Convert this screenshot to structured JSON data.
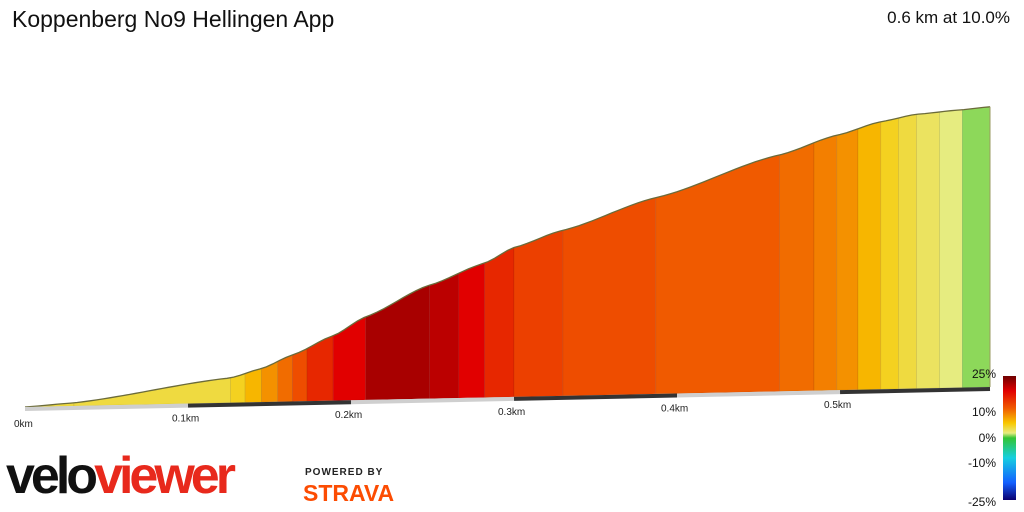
{
  "header": {
    "title": "Koppenberg No9 Hellingen App",
    "summary": "0.6 km at 10.0%"
  },
  "branding": {
    "velo": "velo",
    "viewer": "viewer",
    "powered_by": "POWERED BY",
    "strava": "STRAVA"
  },
  "chart_data": {
    "type": "area",
    "x_unit": "km",
    "x_ticks": [
      {
        "value": 0,
        "label": "0km"
      },
      {
        "value": 0.1,
        "label": "0.1km"
      },
      {
        "value": 0.2,
        "label": "0.2km"
      },
      {
        "value": 0.3,
        "label": "0.3km"
      },
      {
        "value": 0.4,
        "label": "0.4km"
      },
      {
        "value": 0.5,
        "label": "0.5km"
      }
    ],
    "xlim": [
      0,
      0.6
    ],
    "segments": [
      {
        "x0": 0.0,
        "x1": 0.03,
        "gradient": 4
      },
      {
        "x0": 0.03,
        "x1": 0.126,
        "gradient": 4
      },
      {
        "x0": 0.126,
        "x1": 0.135,
        "gradient": 5
      },
      {
        "x0": 0.135,
        "x1": 0.145,
        "gradient": 7
      },
      {
        "x0": 0.145,
        "x1": 0.155,
        "gradient": 9
      },
      {
        "x0": 0.155,
        "x1": 0.164,
        "gradient": 11
      },
      {
        "x0": 0.164,
        "x1": 0.173,
        "gradient": 13
      },
      {
        "x0": 0.173,
        "x1": 0.189,
        "gradient": 16
      },
      {
        "x0": 0.189,
        "x1": 0.209,
        "gradient": 19
      },
      {
        "x0": 0.209,
        "x1": 0.248,
        "gradient": 22
      },
      {
        "x0": 0.248,
        "x1": 0.266,
        "gradient": 21
      },
      {
        "x0": 0.266,
        "x1": 0.282,
        "gradient": 19
      },
      {
        "x0": 0.282,
        "x1": 0.3,
        "gradient": 16
      },
      {
        "x0": 0.3,
        "x1": 0.33,
        "gradient": 14
      },
      {
        "x0": 0.33,
        "x1": 0.387,
        "gradient": 13
      },
      {
        "x0": 0.387,
        "x1": 0.463,
        "gradient": 12
      },
      {
        "x0": 0.463,
        "x1": 0.484,
        "gradient": 11
      },
      {
        "x0": 0.484,
        "x1": 0.498,
        "gradient": 10
      },
      {
        "x0": 0.498,
        "x1": 0.511,
        "gradient": 9
      },
      {
        "x0": 0.511,
        "x1": 0.525,
        "gradient": 7
      },
      {
        "x0": 0.525,
        "x1": 0.536,
        "gradient": 5
      },
      {
        "x0": 0.536,
        "x1": 0.547,
        "gradient": 4
      },
      {
        "x0": 0.547,
        "x1": 0.561,
        "gradient": 3
      },
      {
        "x0": 0.561,
        "x1": 0.575,
        "gradient": 2
      },
      {
        "x0": 0.575,
        "x1": 0.592,
        "gradient": 1
      }
    ],
    "elevation_profile_rel": [
      [
        0.0,
        0.0
      ],
      [
        0.03,
        0.01
      ],
      [
        0.126,
        0.08
      ],
      [
        0.145,
        0.108
      ],
      [
        0.164,
        0.15
      ],
      [
        0.189,
        0.21
      ],
      [
        0.209,
        0.27
      ],
      [
        0.248,
        0.37
      ],
      [
        0.282,
        0.44
      ],
      [
        0.3,
        0.49
      ],
      [
        0.33,
        0.545
      ],
      [
        0.387,
        0.65
      ],
      [
        0.463,
        0.79
      ],
      [
        0.498,
        0.855
      ],
      [
        0.525,
        0.9
      ],
      [
        0.547,
        0.925
      ],
      [
        0.575,
        0.94
      ],
      [
        0.592,
        0.95
      ]
    ],
    "gradient_scale": {
      "min": -25,
      "max": 25,
      "ticks": [
        {
          "value": 25,
          "label": "25%"
        },
        {
          "value": 10,
          "label": "10%"
        },
        {
          "value": 0,
          "label": "0%"
        },
        {
          "value": -10,
          "label": "-10%"
        },
        {
          "value": -25,
          "label": "-25%"
        }
      ],
      "colors": {
        "extreme_up": "#6e0000",
        "steep_up": "#e10000",
        "moderate_up": "#f05a00",
        "mild_up": "#f8c800",
        "gentle_up": "#e6ec80",
        "flat": "#33c433",
        "gentle_down": "#16cfe0",
        "steep_down": "#1460ff",
        "extreme_down": "#0a0070"
      }
    }
  }
}
